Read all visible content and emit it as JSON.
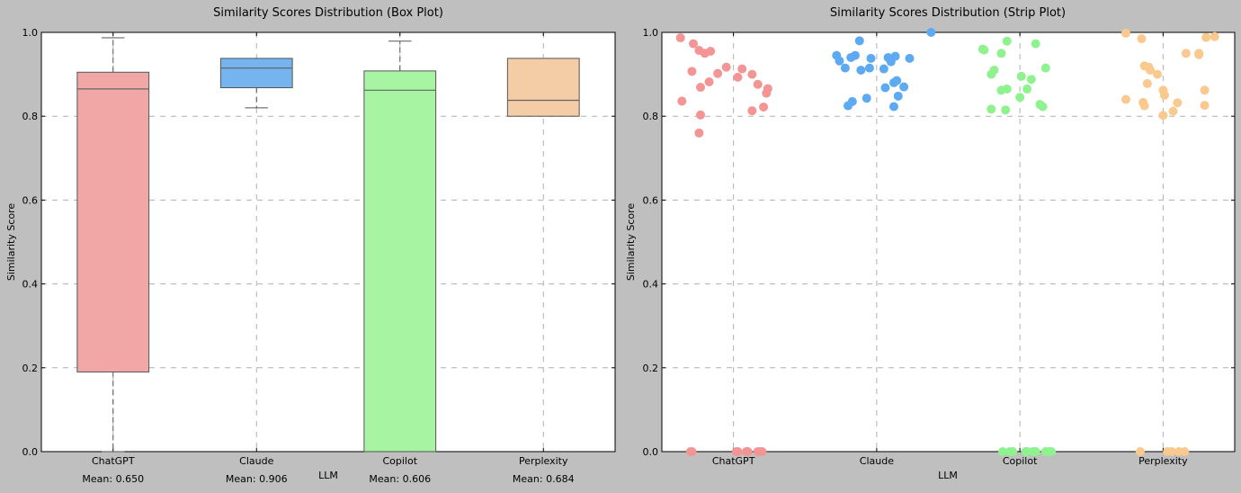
{
  "chart_data": [
    {
      "type": "box",
      "title": "Similarity Scores Distribution (Box Plot)",
      "xlabel": "LLM",
      "ylabel": "Similarity Score",
      "ylim": [
        0.0,
        1.0
      ],
      "yticks": [
        "0.0",
        "0.2",
        "0.4",
        "0.6",
        "0.8",
        "1.0"
      ],
      "grid": true,
      "categories": [
        "ChatGPT",
        "Claude",
        "Copilot",
        "Perplexity"
      ],
      "colors": [
        "#f2a7a7",
        "#76b4ef",
        "#a7f4a2",
        "#f4cda6"
      ],
      "boxes": [
        {
          "name": "ChatGPT",
          "whisker_low": 0.0,
          "q1": 0.19,
          "median": 0.865,
          "q3": 0.905,
          "whisker_high": 0.987
        },
        {
          "name": "Claude",
          "whisker_low": 0.82,
          "q1": 0.868,
          "median": 0.915,
          "q3": 0.938,
          "whisker_high": 0.938
        },
        {
          "name": "Copilot",
          "whisker_low": 0.0,
          "q1": 0.0,
          "median": 0.862,
          "q3": 0.908,
          "whisker_high": 0.979
        },
        {
          "name": "Perplexity",
          "whisker_low": 0.8,
          "q1": 0.8,
          "median": 0.838,
          "q3": 0.938,
          "whisker_high": 0.938
        }
      ],
      "annotations": [
        "Mean: 0.650",
        "Mean: 0.906",
        "Mean: 0.606",
        "Mean: 0.684"
      ]
    },
    {
      "type": "scatter",
      "title": "Similarity Scores Distribution (Strip Plot)",
      "xlabel": "LLM",
      "ylabel": "Similarity Score",
      "ylim": [
        0.0,
        1.0
      ],
      "yticks": [
        "0.0",
        "0.2",
        "0.4",
        "0.6",
        "0.8",
        "1.0"
      ],
      "grid": true,
      "categories": [
        "ChatGPT",
        "Claude",
        "Copilot",
        "Perplexity"
      ],
      "colors": [
        "#f49595",
        "#5eaaf2",
        "#8ef28e",
        "#f9c98f"
      ],
      "points": [
        {
          "category": "ChatGPT",
          "offsets": [
            -0.37,
            -0.28,
            -0.24,
            -0.16,
            -0.2,
            -0.05,
            0.06,
            -0.29,
            -0.11,
            0.13,
            0.03,
            -0.17,
            0.17,
            0.24,
            -0.23,
            0.23,
            -0.36,
            0.21,
            0.13,
            -0.23,
            -0.24,
            0.09,
            -0.3,
            -0.29,
            0.03,
            0.18,
            0.1,
            0.17,
            0.2,
            0.02
          ],
          "values": [
            0.987,
            0.973,
            0.957,
            0.955,
            0.95,
            0.917,
            0.913,
            0.907,
            0.902,
            0.9,
            0.893,
            0.882,
            0.876,
            0.866,
            0.869,
            0.855,
            0.836,
            0.822,
            0.813,
            0.803,
            0.76,
            0.0,
            0.0,
            0.0,
            0.0,
            0.0,
            0.0,
            0.0,
            0.0,
            0.0
          ]
        },
        {
          "category": "Claude",
          "offsets": [
            0.38,
            -0.12,
            -0.28,
            -0.15,
            -0.18,
            -0.04,
            -0.26,
            -0.05,
            0.05,
            0.13,
            0.08,
            0.23,
            0.1,
            -0.11,
            0.14,
            0.12,
            0.19,
            0.06,
            0.15,
            -0.07,
            -0.17,
            0.12,
            -0.2,
            -0.22
          ],
          "values": [
            1.0,
            0.98,
            0.945,
            0.945,
            0.94,
            0.938,
            0.932,
            0.915,
            0.913,
            0.943,
            0.94,
            0.938,
            0.93,
            0.91,
            0.885,
            0.88,
            0.87,
            0.868,
            0.848,
            0.843,
            0.835,
            0.823,
            0.825,
            0.915
          ]
        },
        {
          "category": "Copilot",
          "offsets": [
            -0.26,
            -0.09,
            -0.25,
            -0.13,
            -0.18,
            0.11,
            -0.2,
            0.01,
            0.08,
            0.18,
            -0.09,
            -0.13,
            0.05,
            0.0,
            0.16,
            -0.2,
            -0.1,
            0.14,
            0.18,
            -0.07,
            0.04,
            -0.12,
            -0.05,
            0.05,
            0.22,
            0.09,
            0.2,
            0.11
          ],
          "values": [
            0.96,
            0.979,
            0.958,
            0.95,
            0.91,
            0.973,
            0.9,
            0.895,
            0.888,
            0.915,
            0.865,
            0.862,
            0.865,
            0.845,
            0.823,
            0.817,
            0.815,
            0.828,
            0.0,
            0.0,
            0.0,
            0.0,
            0.0,
            0.0,
            0.0,
            0.0,
            0.0,
            0.0
          ]
        },
        {
          "category": "Perplexity",
          "offsets": [
            -0.26,
            0.36,
            -0.15,
            0.3,
            0.25,
            -0.13,
            0.16,
            -0.1,
            0.25,
            -0.26,
            0.01,
            0.0,
            -0.09,
            0.29,
            -0.04,
            -0.11,
            0.1,
            0.29,
            -0.14,
            -0.13,
            0.07,
            0.0,
            0.06,
            0.11,
            0.15,
            0.03,
            -0.16
          ],
          "values": [
            0.998,
            0.99,
            0.985,
            0.988,
            0.95,
            0.92,
            0.95,
            0.917,
            0.947,
            0.84,
            0.85,
            0.862,
            0.91,
            0.862,
            0.9,
            0.878,
            0.832,
            0.826,
            0.833,
            0.825,
            0.812,
            0.802,
            0.0,
            0.0,
            0.0,
            0.0,
            0.0
          ]
        }
      ]
    }
  ]
}
